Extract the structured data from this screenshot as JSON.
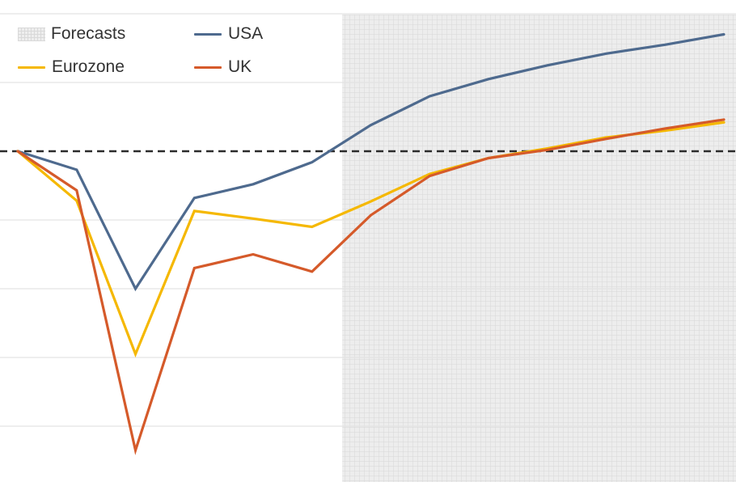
{
  "chart_data": {
    "type": "line",
    "x": [
      0,
      1,
      2,
      3,
      4,
      5,
      6,
      7,
      8,
      9,
      10,
      11,
      12
    ],
    "forecast_start": 5.5,
    "ylim": [
      -4.8,
      2.2
    ],
    "y_gridlines": [
      2,
      1,
      0,
      -1,
      -2,
      -3,
      -4
    ],
    "reference_line": 0,
    "series": [
      {
        "name": "USA",
        "color": "#4e6a8e",
        "values": [
          0,
          -0.27,
          -2.0,
          -0.68,
          -0.48,
          -0.16,
          0.38,
          0.8,
          1.05,
          1.25,
          1.42,
          1.55,
          1.7
        ]
      },
      {
        "name": "Eurozone",
        "color": "#f5b800",
        "values": [
          0,
          -0.72,
          -2.95,
          -0.87,
          -0.98,
          -1.1,
          -0.73,
          -0.33,
          -0.1,
          0.04,
          0.2,
          0.3,
          0.42
        ]
      },
      {
        "name": "UK",
        "color": "#d55a2a",
        "values": [
          0,
          -0.57,
          -4.35,
          -1.7,
          -1.5,
          -1.75,
          -0.93,
          -0.36,
          -0.1,
          0.02,
          0.18,
          0.33,
          0.46
        ]
      }
    ],
    "legend": {
      "forecasts_label": "Forecasts",
      "placement": "top-left",
      "items": [
        {
          "label": "USA",
          "color": "#4e6a8e"
        },
        {
          "label": "Eurozone",
          "color": "#f5b800"
        },
        {
          "label": "UK",
          "color": "#d55a2a"
        }
      ]
    },
    "title": "",
    "xlabel": "",
    "ylabel": ""
  }
}
